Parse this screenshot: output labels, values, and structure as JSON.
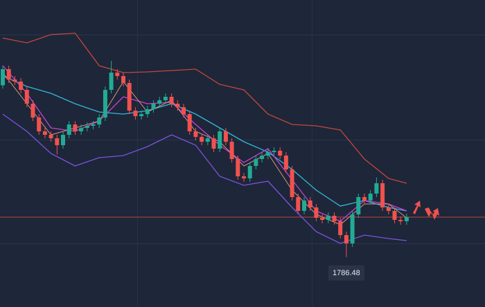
{
  "chart_data": {
    "type": "candlestick",
    "ylim": [
      1764.8,
      1898
    ],
    "up_color": "#22ab94",
    "down_color": "#f0524f",
    "price_line_color": "#b5493f",
    "open": [
      1861,
      1868,
      1863.5,
      1862.6,
      1859,
      1853,
      1847,
      1841,
      1839.5,
      1838,
      1835,
      1839.5,
      1844,
      1841,
      1842.5,
      1843.4,
      1844,
      1847,
      1859,
      1866.5,
      1865,
      1862,
      1850,
      1847.6,
      1848.5,
      1850.6,
      1853,
      1854.5,
      1856,
      1853,
      1851.5,
      1848.5,
      1841,
      1838.6,
      1836.5,
      1838,
      1833.5,
      1841,
      1836.5,
      1829,
      1821.5,
      1820.6,
      1826,
      1829,
      1830.5,
      1832,
      1832.6,
      1830.5,
      1824.5,
      1812.5,
      1806.5,
      1811,
      1808,
      1803.5,
      1802.6,
      1804.4,
      1802,
      1796,
      1792.4,
      1805,
      1812.5,
      1811,
      1814,
      1818.5,
      1808,
      1806.5,
      1802.6,
      1802
    ],
    "high": [
      1869.5,
      1869.5,
      1865,
      1864.1,
      1860.5,
      1854.5,
      1848.5,
      1842.5,
      1841,
      1839.5,
      1841,
      1845.5,
      1845.5,
      1844,
      1844.9,
      1845.5,
      1848.5,
      1860.5,
      1871.6,
      1868,
      1866.5,
      1863.5,
      1851.5,
      1850,
      1852.1,
      1854.5,
      1856,
      1857.5,
      1857.5,
      1854.5,
      1853,
      1850,
      1842.5,
      1840.1,
      1839.5,
      1839.5,
      1842.5,
      1842.5,
      1838,
      1830.5,
      1823,
      1827.5,
      1830.5,
      1832,
      1833.5,
      1834.1,
      1834.1,
      1832,
      1826,
      1814,
      1812.5,
      1812.5,
      1809.5,
      1805,
      1805.9,
      1805.9,
      1803.5,
      1797.5,
      1806.5,
      1814,
      1814,
      1815.5,
      1821,
      1820,
      1809.5,
      1808,
      1804.1,
      1805.3
    ],
    "low": [
      1859.5,
      1862,
      1861.1,
      1857.5,
      1851.5,
      1845.5,
      1839.5,
      1838,
      1836.5,
      1831,
      1833.5,
      1838,
      1839.5,
      1839.5,
      1841,
      1841.9,
      1842.5,
      1845.5,
      1857.5,
      1863.5,
      1860.5,
      1848.5,
      1846.1,
      1846.1,
      1847,
      1849.1,
      1851.5,
      1853,
      1851.5,
      1850,
      1847,
      1839.5,
      1837.1,
      1835,
      1835,
      1832,
      1832,
      1835,
      1827.5,
      1820,
      1819.1,
      1819.1,
      1824.5,
      1827.5,
      1829,
      1830.5,
      1829,
      1823,
      1811,
      1805,
      1805,
      1806.5,
      1802,
      1801.1,
      1801.1,
      1800.5,
      1794.5,
      1786.48,
      1790.9,
      1803.5,
      1809.5,
      1809.5,
      1812.5,
      1806.5,
      1805,
      1801.1,
      1800.5,
      1800.5
    ],
    "close": [
      1868,
      1863.5,
      1862.6,
      1859,
      1853,
      1847,
      1841,
      1839.5,
      1838,
      1835,
      1839.5,
      1844,
      1841,
      1842.5,
      1843.4,
      1844,
      1847,
      1859,
      1866.5,
      1865,
      1862,
      1850,
      1847.6,
      1848.5,
      1850.6,
      1853,
      1854.5,
      1856,
      1853,
      1851.5,
      1848.5,
      1841,
      1838.6,
      1836.5,
      1838,
      1833.5,
      1841,
      1836.5,
      1829,
      1821.5,
      1820.6,
      1826,
      1829,
      1830.5,
      1832,
      1832.6,
      1830.5,
      1824.5,
      1812.5,
      1806.5,
      1811,
      1808,
      1803.5,
      1802.6,
      1804.4,
      1802,
      1796,
      1792.4,
      1805,
      1812.5,
      1811,
      1814,
      1818.5,
      1808,
      1806.5,
      1802.6,
      1802,
      1803.8
    ],
    "series": [
      {
        "color": "#c4473a",
        "x": [
          0,
          4,
          8,
          12,
          16,
          20,
          24,
          28,
          32,
          36,
          40,
          44,
          48,
          52,
          56,
          60,
          64,
          67
        ],
        "values": [
          1881.5,
          1879.4,
          1883,
          1883.6,
          1869.5,
          1866.5,
          1866.8,
          1867.4,
          1868,
          1861.4,
          1859,
          1848.5,
          1844,
          1843.4,
          1841.6,
          1829,
          1820.6,
          1818.5
        ]
      },
      {
        "color": "#7d52de",
        "x": [
          0,
          4,
          8,
          12,
          16,
          20,
          24,
          28,
          32,
          36,
          40,
          44,
          48,
          52,
          56,
          60,
          64,
          67
        ],
        "values": [
          1848.5,
          1841,
          1831.4,
          1826,
          1829.6,
          1830.5,
          1834.4,
          1839.5,
          1835,
          1821.5,
          1817.6,
          1819.4,
          1808,
          1797.5,
          1792.4,
          1796,
          1794.5,
          1793.6
        ]
      },
      {
        "color": "#33b8da",
        "x": [
          0,
          4,
          8,
          12,
          16,
          20,
          24,
          28,
          32,
          36,
          40,
          44,
          48,
          52,
          56,
          60,
          64,
          67
        ],
        "values": [
          1865,
          1860.5,
          1857.5,
          1853,
          1849.4,
          1848.5,
          1850,
          1853,
          1848.5,
          1842.5,
          1836.5,
          1832,
          1824.5,
          1815.5,
          1808.6,
          1811,
          1808,
          1806.5
        ]
      },
      {
        "color": "#c642d6",
        "x": [
          0,
          4,
          8,
          12,
          16,
          20,
          24,
          28,
          32,
          36,
          40,
          44,
          48,
          52,
          56,
          60,
          64,
          67
        ],
        "values": [
          1869.5,
          1857.5,
          1842.5,
          1841,
          1845.5,
          1856,
          1853,
          1853.6,
          1844,
          1835,
          1827.5,
          1833.5,
          1820,
          1806.5,
          1802,
          1811,
          1809.5,
          1806.5
        ]
      },
      {
        "color": "#d9967a",
        "x": [
          0,
          4,
          8,
          12,
          16,
          20,
          24,
          28,
          32,
          36,
          40,
          44,
          48,
          52,
          56,
          60,
          64,
          67
        ],
        "values": [
          1866.5,
          1853,
          1839.5,
          1842.5,
          1845.5,
          1862.6,
          1849.4,
          1854.5,
          1841,
          1836.5,
          1826,
          1831.4,
          1815.5,
          1805,
          1800.5,
          1809.5,
          1809.5,
          1803.5
        ]
      }
    ],
    "annotation_index": 57
  }
}
